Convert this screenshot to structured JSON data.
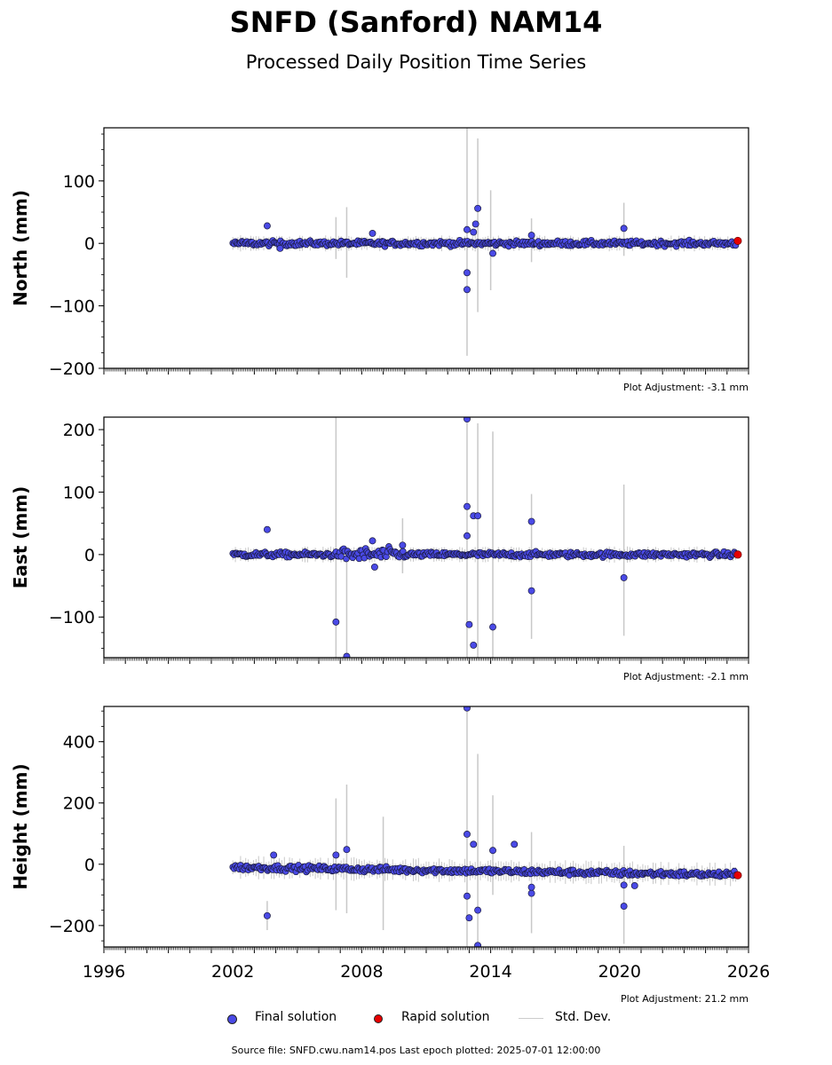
{
  "title": "SNFD (Sanford) NAM14",
  "subtitle": "Processed Daily Position Time Series",
  "legend": {
    "final": "Final solution",
    "rapid": "Rapid solution",
    "std": "Std. Dev."
  },
  "footer": "Source file: SNFD.cwu.nam14.pos  Last epoch plotted: 2025-07-01 12:00:00",
  "colors": {
    "final": "#4a4ae6",
    "rapid": "#e60000",
    "std": "#c8c8c8"
  },
  "chart_data": [
    {
      "type": "scatter",
      "ylabel": "North (mm)",
      "xlim": [
        1996,
        2026
      ],
      "ylim": [
        -200,
        185
      ],
      "yticks": [
        -200,
        -100,
        0,
        100
      ],
      "adjustment": "Plot Adjustment: -3.1 mm",
      "outliers": [
        {
          "x": 2003.6,
          "y": 28
        },
        {
          "x": 2004.2,
          "y": -8
        },
        {
          "x": 2008.5,
          "y": 16
        },
        {
          "x": 2012.9,
          "y": -47
        },
        {
          "x": 2012.9,
          "y": -74
        },
        {
          "x": 2013.3,
          "y": 31
        },
        {
          "x": 2013.4,
          "y": 56
        },
        {
          "x": 2014.1,
          "y": -16
        },
        {
          "x": 2015.9,
          "y": 13
        },
        {
          "x": 2020.2,
          "y": 24
        },
        {
          "x": 2012.9,
          "y": 22
        },
        {
          "x": 2013.2,
          "y": 18
        }
      ],
      "errorbars": [
        {
          "x": 2006.8,
          "lo": -25,
          "hi": 42
        },
        {
          "x": 2007.3,
          "lo": -55,
          "hi": 58
        },
        {
          "x": 2012.9,
          "lo": -180,
          "hi": 185
        },
        {
          "x": 2013.4,
          "lo": -110,
          "hi": 168
        },
        {
          "x": 2014.0,
          "lo": -75,
          "hi": 85
        },
        {
          "x": 2015.9,
          "lo": -30,
          "hi": 40
        },
        {
          "x": 2020.2,
          "lo": -20,
          "hi": 65
        }
      ],
      "rapid": [
        {
          "x": 2025.5,
          "y": 4
        }
      ]
    },
    {
      "type": "scatter",
      "ylabel": "East (mm)",
      "xlim": [
        1996,
        2026
      ],
      "ylim": [
        -165,
        220
      ],
      "yticks": [
        -100,
        0,
        100,
        200
      ],
      "adjustment": "Plot Adjustment: -2.1 mm",
      "outliers": [
        {
          "x": 2003.6,
          "y": 40
        },
        {
          "x": 2006.8,
          "y": -108
        },
        {
          "x": 2007.3,
          "y": -163
        },
        {
          "x": 2008.5,
          "y": 22
        },
        {
          "x": 2008.6,
          "y": -20
        },
        {
          "x": 2009.9,
          "y": 15
        },
        {
          "x": 2012.9,
          "y": 217
        },
        {
          "x": 2012.9,
          "y": 77
        },
        {
          "x": 2012.9,
          "y": 30
        },
        {
          "x": 2013.0,
          "y": -112
        },
        {
          "x": 2013.2,
          "y": -145
        },
        {
          "x": 2013.2,
          "y": 62
        },
        {
          "x": 2013.4,
          "y": 62
        },
        {
          "x": 2014.1,
          "y": -116
        },
        {
          "x": 2015.9,
          "y": 53
        },
        {
          "x": 2015.9,
          "y": -58
        },
        {
          "x": 2020.2,
          "y": -37
        }
      ],
      "errorbars": [
        {
          "x": 2006.8,
          "lo": -165,
          "hi": 220
        },
        {
          "x": 2007.3,
          "lo": -165,
          "hi": 10
        },
        {
          "x": 2012.9,
          "lo": -165,
          "hi": 220
        },
        {
          "x": 2013.4,
          "lo": -165,
          "hi": 210
        },
        {
          "x": 2014.1,
          "lo": -165,
          "hi": 197
        },
        {
          "x": 2015.9,
          "lo": -135,
          "hi": 97
        },
        {
          "x": 2020.2,
          "lo": -130,
          "hi": 112
        },
        {
          "x": 2009.9,
          "lo": -30,
          "hi": 58
        }
      ],
      "rapid": [
        {
          "x": 2025.5,
          "y": 0
        }
      ]
    },
    {
      "type": "scatter",
      "ylabel": "Height (mm)",
      "xlim": [
        1996,
        2026
      ],
      "ylim": [
        -270,
        515
      ],
      "yticks": [
        -200,
        0,
        200,
        400
      ],
      "xticks": [
        1996,
        2002,
        2008,
        2014,
        2020,
        2026
      ],
      "adjustment": "Plot Adjustment: 21.2 mm",
      "outliers": [
        {
          "x": 2003.6,
          "y": -168
        },
        {
          "x": 2003.9,
          "y": 30
        },
        {
          "x": 2006.8,
          "y": 30
        },
        {
          "x": 2007.3,
          "y": 48
        },
        {
          "x": 2012.9,
          "y": 510
        },
        {
          "x": 2012.9,
          "y": 98
        },
        {
          "x": 2012.9,
          "y": -104
        },
        {
          "x": 2013.0,
          "y": -175
        },
        {
          "x": 2013.2,
          "y": 65
        },
        {
          "x": 2013.4,
          "y": -150
        },
        {
          "x": 2013.4,
          "y": -265
        },
        {
          "x": 2014.1,
          "y": 45
        },
        {
          "x": 2015.1,
          "y": 65
        },
        {
          "x": 2015.9,
          "y": -95
        },
        {
          "x": 2015.9,
          "y": -75
        },
        {
          "x": 2020.2,
          "y": -137
        },
        {
          "x": 2020.2,
          "y": -68
        },
        {
          "x": 2020.7,
          "y": -70
        }
      ],
      "errorbars": [
        {
          "x": 2003.6,
          "lo": -215,
          "hi": -120
        },
        {
          "x": 2006.8,
          "lo": -150,
          "hi": 215
        },
        {
          "x": 2007.3,
          "lo": -160,
          "hi": 260
        },
        {
          "x": 2009.0,
          "lo": -215,
          "hi": 155
        },
        {
          "x": 2012.9,
          "lo": -270,
          "hi": 515
        },
        {
          "x": 2013.4,
          "lo": -270,
          "hi": 360
        },
        {
          "x": 2014.1,
          "lo": -100,
          "hi": 225
        },
        {
          "x": 2015.9,
          "lo": -225,
          "hi": 105
        },
        {
          "x": 2020.2,
          "lo": -260,
          "hi": 60
        }
      ],
      "rapid": [
        {
          "x": 2025.5,
          "y": -36
        }
      ]
    }
  ]
}
